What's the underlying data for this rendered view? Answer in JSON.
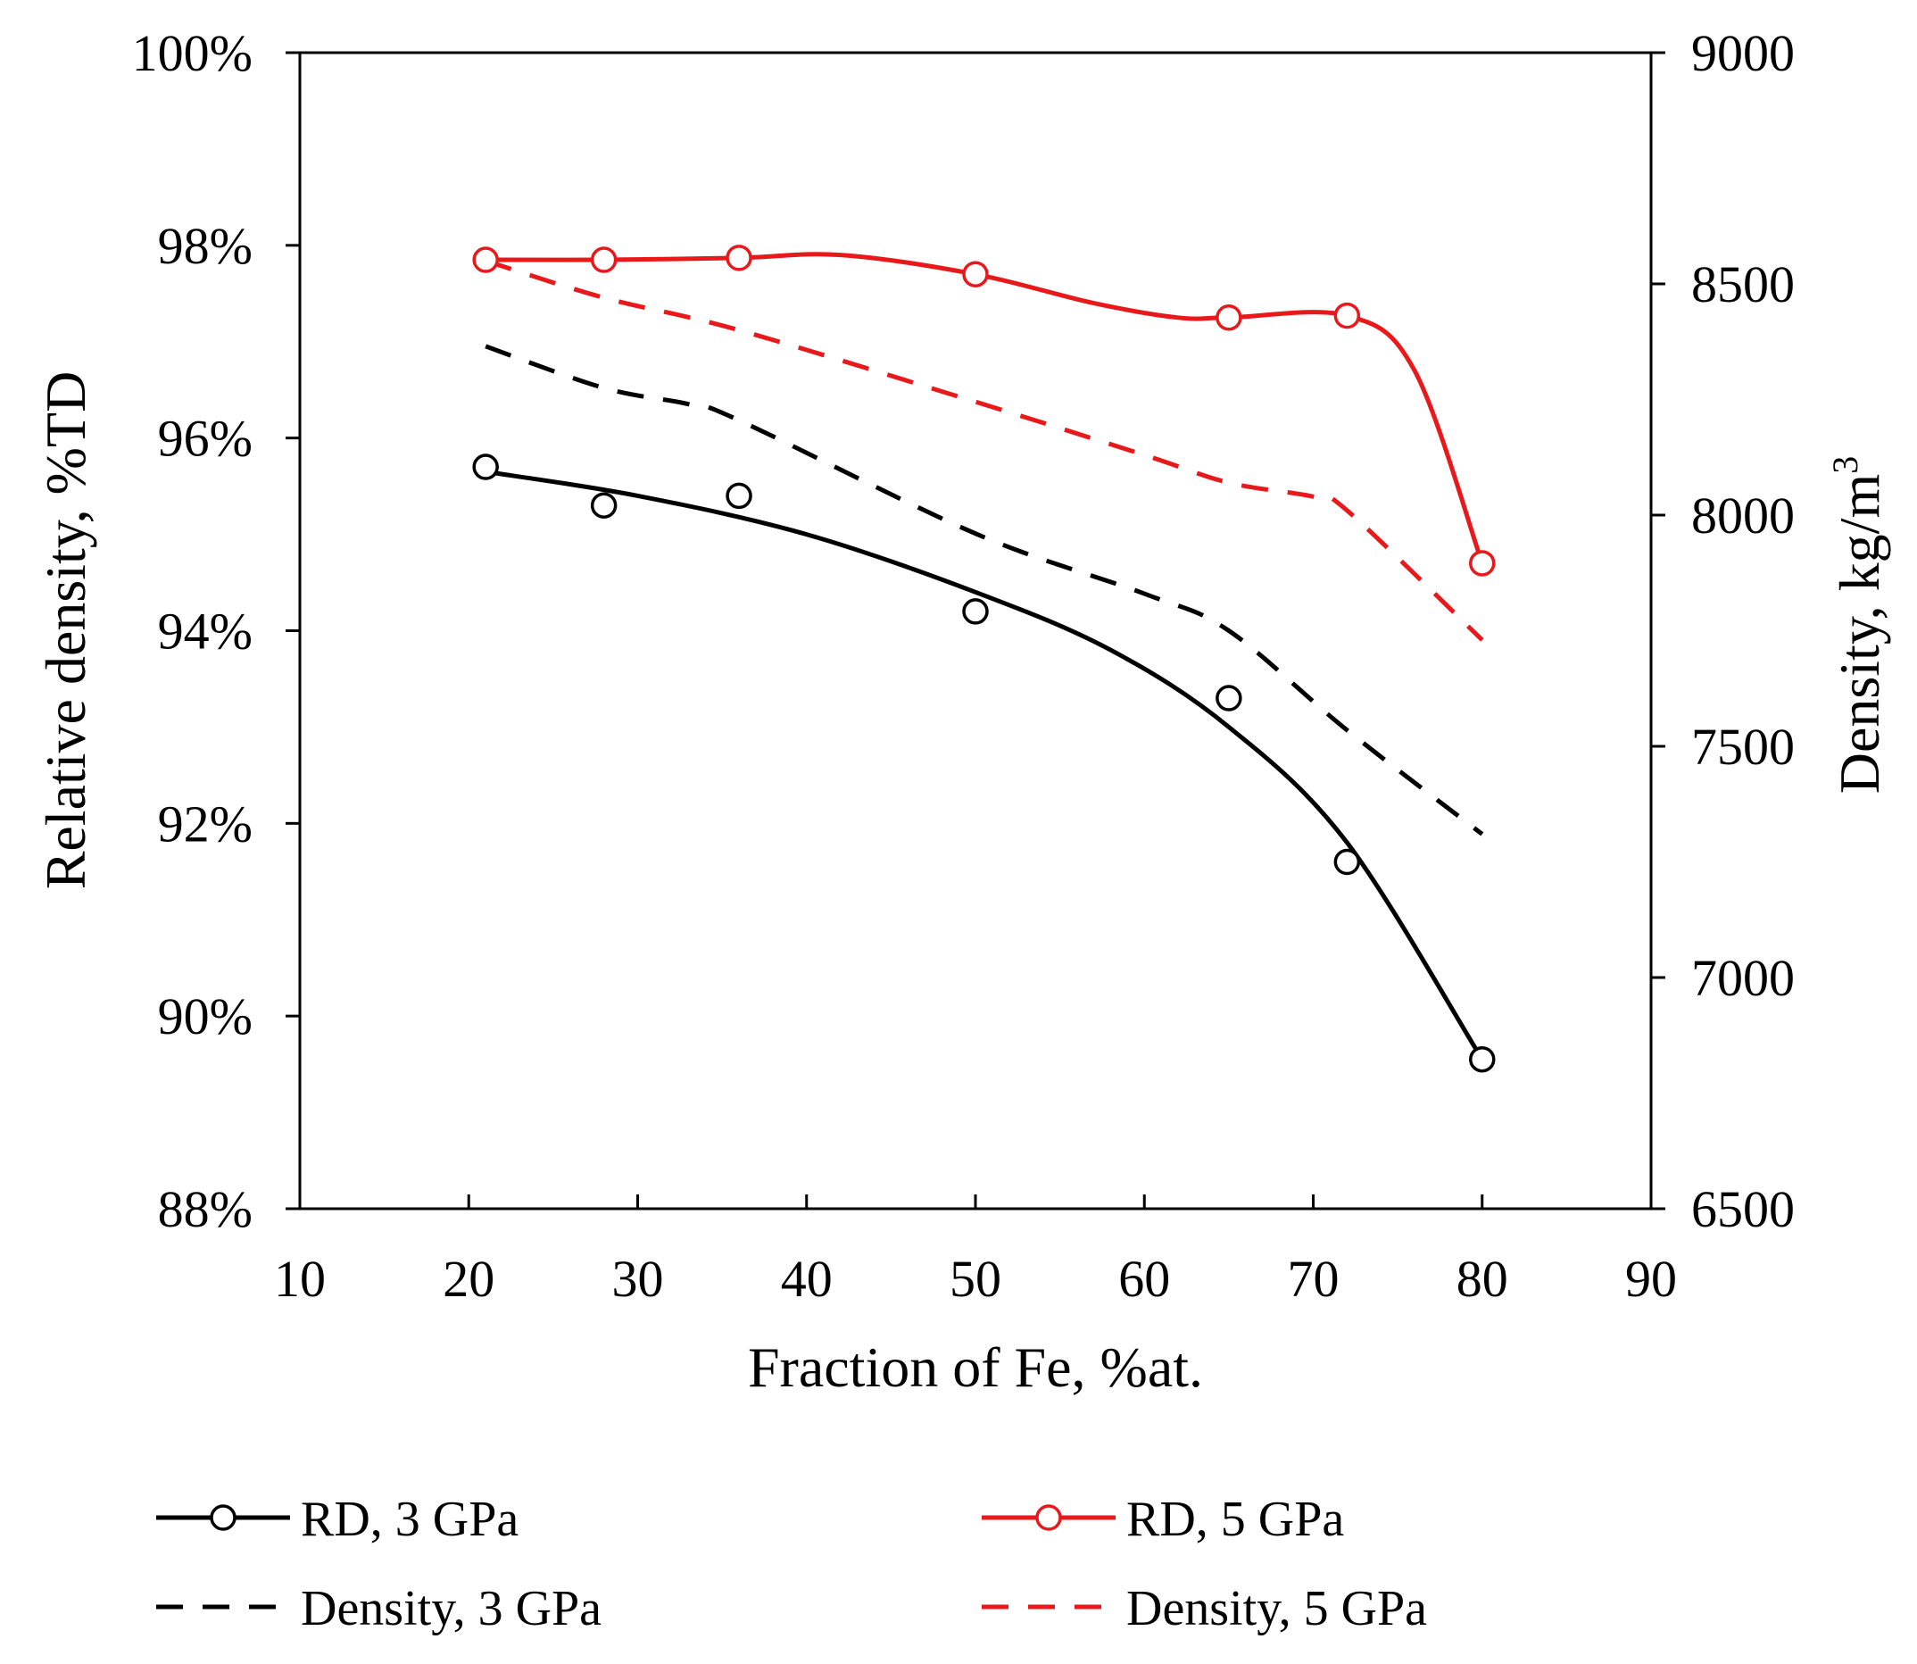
{
  "chart_data": {
    "type": "line",
    "title": "",
    "xlabel": "Fraction of Fe, %at.",
    "ylabel_left": "Relative density, %TD",
    "ylabel_right_prefix": "Density, kg/m",
    "ylabel_right_superscript": "3",
    "xlim": [
      10,
      90
    ],
    "ylim_left": [
      88,
      100
    ],
    "ylim_right": [
      6500,
      9000
    ],
    "x_ticks": [
      10,
      20,
      30,
      40,
      50,
      60,
      70,
      80,
      90
    ],
    "x_tick_labels": [
      "10",
      "20",
      "30",
      "40",
      "50",
      "60",
      "70",
      "80",
      "90"
    ],
    "y_left_ticks": [
      88,
      90,
      92,
      94,
      96,
      98,
      100
    ],
    "y_left_tick_labels": [
      "88%",
      "90%",
      "92%",
      "94%",
      "96%",
      "98%",
      "100%"
    ],
    "y_right_ticks": [
      6500,
      7000,
      7500,
      8000,
      8500,
      9000
    ],
    "y_right_tick_labels": [
      "6500",
      "7000",
      "7500",
      "8000",
      "8500",
      "9000"
    ],
    "grid": false,
    "legend_position": "bottom",
    "series": [
      {
        "name": "RD, 3 GPa",
        "axis": "left",
        "style": "solid-markers",
        "color": "#000000",
        "x": [
          21,
          28,
          36,
          50,
          65,
          72,
          80
        ],
        "values": [
          95.7,
          95.3,
          95.4,
          94.2,
          93.3,
          91.6,
          89.55
        ],
        "fit_x": [
          21,
          30,
          40,
          50,
          58,
          65,
          72,
          80
        ],
        "fit_values": [
          95.65,
          95.4,
          95.0,
          94.4,
          93.8,
          93.0,
          91.8,
          89.55
        ]
      },
      {
        "name": "RD, 5 GPa",
        "axis": "left",
        "style": "solid-markers",
        "color": "#e8191b",
        "x": [
          21,
          28,
          36,
          50,
          65,
          72,
          80
        ],
        "values": [
          97.85,
          97.85,
          97.87,
          97.7,
          97.25,
          97.27,
          94.7
        ],
        "fit_x": [
          21,
          28,
          36,
          42,
          50,
          57,
          62,
          65,
          72,
          76,
          80
        ],
        "fit_values": [
          97.85,
          97.85,
          97.87,
          97.9,
          97.7,
          97.4,
          97.25,
          97.25,
          97.27,
          96.7,
          94.7
        ]
      },
      {
        "name": "Density, 3 GPa",
        "axis": "right",
        "style": "dashed",
        "color": "#000000",
        "x": [
          21,
          28,
          33,
          36,
          50,
          60,
          65,
          72,
          80
        ],
        "values": [
          8365,
          8275,
          8240,
          8205,
          7960,
          7830,
          7750,
          7535,
          7310
        ]
      },
      {
        "name": "Density, 5 GPa",
        "axis": "right",
        "style": "dashed",
        "color": "#e8191b",
        "x": [
          21,
          28,
          36,
          50,
          60,
          65,
          70,
          72,
          80
        ],
        "values": [
          8550,
          8470,
          8400,
          8245,
          8130,
          8070,
          8040,
          8010,
          7730
        ]
      }
    ]
  }
}
